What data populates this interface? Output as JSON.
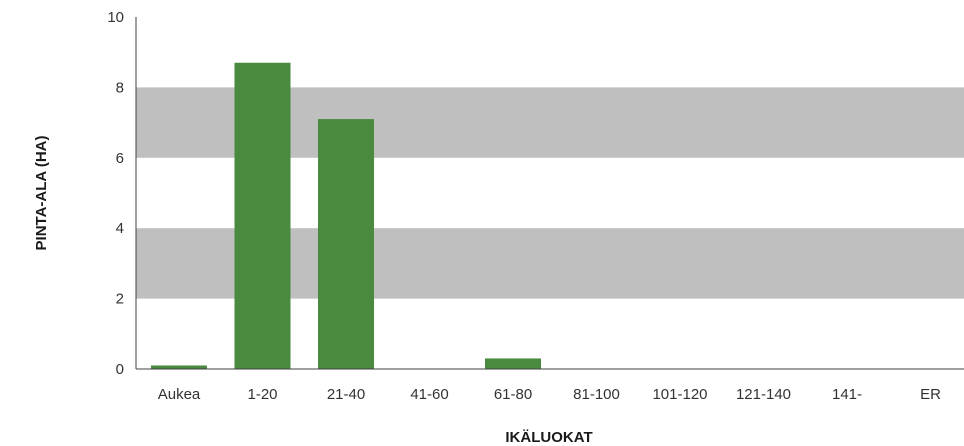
{
  "chart_data": {
    "type": "bar",
    "title": "",
    "xlabel": "IKÄLUOKAT",
    "ylabel": "PINTA-ALA (HA)",
    "categories": [
      "Aukea",
      "1-20",
      "21-40",
      "41-60",
      "61-80",
      "81-100",
      "101-120",
      "121-140",
      "141-",
      "ER"
    ],
    "values": [
      0.1,
      8.7,
      7.1,
      0,
      0.3,
      0,
      0,
      0,
      0,
      0
    ],
    "ylim": [
      0,
      10
    ],
    "yticks": [
      0,
      2,
      4,
      6,
      8,
      10
    ],
    "grid": "alternating horizontal bands",
    "legend": "none",
    "colors": {
      "bar": "#4a8a3f",
      "band": "#bfbfbf",
      "axis": "#404040"
    }
  }
}
